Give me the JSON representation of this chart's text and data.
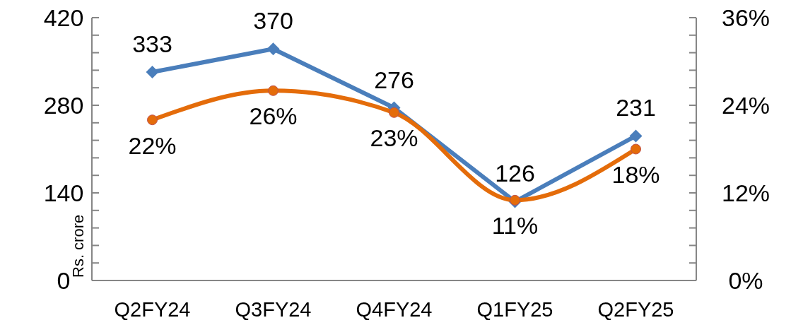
{
  "chart_data": {
    "type": "line",
    "ylabel": "Rs. crore",
    "categories": [
      "Q2FY24",
      "Q3FY24",
      "Q4FY24",
      "Q1FY25",
      "Q2FY25"
    ],
    "series": [
      {
        "color": "#4a7ebb",
        "values": [
          333,
          370,
          276,
          126,
          231
        ],
        "marker": "diamond",
        "line_style": "solid"
      },
      {
        "color": "#e46c0a",
        "values": [
          22,
          26,
          23,
          11,
          18
        ],
        "axis": "y2",
        "marker": "circle",
        "line_style": "solid",
        "value_labels": [
          "22%",
          "26%",
          "23%",
          "11%",
          "18%"
        ]
      }
    ],
    "ylim": [
      0,
      420
    ],
    "yticks": [
      0,
      {
        "value": 28,
        "label": null
      },
      {
        "value": 56,
        "label": null
      },
      {
        "value": 84,
        "label": null
      },
      {
        "value": 112,
        "label": null
      },
      140,
      {
        "value": 168,
        "label": null
      },
      {
        "value": 196,
        "label": null
      },
      {
        "value": 224,
        "label": null
      },
      {
        "value": 252,
        "label": null
      },
      280,
      {
        "value": 308,
        "label": null
      },
      {
        "value": 336,
        "label": null
      },
      {
        "value": 364,
        "label": null
      },
      {
        "value": 392,
        "label": null
      },
      420
    ],
    "y2lim": [
      0,
      36
    ],
    "y2ticks": [
      {
        "value": 0,
        "label": "0%"
      },
      {
        "value": 2.4,
        "label": null
      },
      {
        "value": 4.8,
        "label": null
      },
      {
        "value": 7.2,
        "label": null
      },
      {
        "value": 9.6,
        "label": null
      },
      {
        "value": 12,
        "label": "12%"
      },
      {
        "value": 14.4,
        "label": null
      },
      {
        "value": 16.8,
        "label": null
      },
      {
        "value": 19.2,
        "label": null
      },
      {
        "value": 21.6,
        "label": null
      },
      {
        "value": 24,
        "label": "24%"
      },
      {
        "value": 26.4,
        "label": null
      },
      {
        "value": 28.8,
        "label": null
      },
      {
        "value": 31.2,
        "label": null
      },
      {
        "value": 33.6,
        "label": null
      },
      {
        "value": 36,
        "label": "36%"
      }
    ],
    "data_labels": true,
    "grid": false
  }
}
